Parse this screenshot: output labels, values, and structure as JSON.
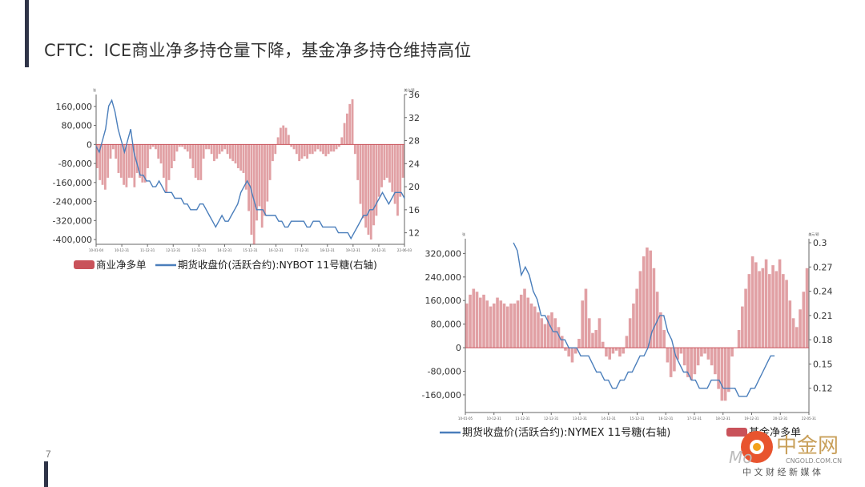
{
  "page": {
    "title": "CFTC：ICE商业净多持仓量下降，基金净多持仓维持高位",
    "page_number": "7"
  },
  "colors": {
    "bar": "#c9525a",
    "line": "#4a7ebb",
    "accent": "#2f3448"
  },
  "watermark": {
    "brand": "中金网",
    "domain": "CNGOLD.COM.CN",
    "tagline": "中 文 财 经 新 媒 体",
    "logo_text": "Mo"
  },
  "chart_data": [
    {
      "type": "bar+line",
      "left_unit": "张",
      "right_unit": "美分/磅",
      "left_ticks": [
        "160,000",
        "80,000",
        "0",
        "-80,000",
        "-160,000",
        "-240,000",
        "-320,000",
        "-400,000"
      ],
      "right_ticks": [
        "36",
        "32",
        "28",
        "24",
        "20",
        "16",
        "12"
      ],
      "ylim_left": [
        -420000,
        210000
      ],
      "ylim_right": [
        10,
        36
      ],
      "x_ticks": [
        "10-01-04",
        "10-12-31",
        "11-12-31",
        "12-12-31",
        "13-12-31",
        "14-12-31",
        "15-12-31",
        "16-12-31",
        "17-12-31",
        "18-12-31",
        "19-12-31",
        "20-12-31",
        "22-06-03"
      ],
      "legend": [
        "商业净多单",
        "期货收盘价(活跃合约):NYBOT 11号糖(右轴)"
      ],
      "bars": [
        -100000,
        -150000,
        -170000,
        -190000,
        -140000,
        -60000,
        -20000,
        -60000,
        -120000,
        -140000,
        -170000,
        -180000,
        -140000,
        -140000,
        -180000,
        -120000,
        -140000,
        -160000,
        -160000,
        -100000,
        -20000,
        -10000,
        -20000,
        -60000,
        -80000,
        -140000,
        -200000,
        -150000,
        -100000,
        -70000,
        -30000,
        -10000,
        -10000,
        -20000,
        -30000,
        -60000,
        -100000,
        -140000,
        -150000,
        -150000,
        -60000,
        -20000,
        -20000,
        -40000,
        -70000,
        -60000,
        -40000,
        -30000,
        -20000,
        -40000,
        -60000,
        -70000,
        -80000,
        -100000,
        -110000,
        -120000,
        -190000,
        -280000,
        -380000,
        -420000,
        -320000,
        -260000,
        -350000,
        -300000,
        -240000,
        -150000,
        -70000,
        -40000,
        30000,
        70000,
        80000,
        70000,
        40000,
        -10000,
        -20000,
        -40000,
        -70000,
        -60000,
        -50000,
        -60000,
        -40000,
        -40000,
        -30000,
        -20000,
        -30000,
        -40000,
        -50000,
        -40000,
        -30000,
        -30000,
        -20000,
        -10000,
        30000,
        90000,
        130000,
        170000,
        190000,
        -40000,
        -150000,
        -250000,
        -310000,
        -350000,
        -380000,
        -400000,
        -340000,
        -300000,
        -220000,
        -180000,
        -150000,
        -140000,
        -160000,
        -200000,
        -250000,
        -300000,
        -220000,
        -140000
      ],
      "price": [
        27,
        26,
        28,
        30,
        34,
        35,
        33,
        30,
        28,
        26,
        28,
        30,
        26,
        24,
        22,
        22,
        21,
        21,
        20,
        20,
        21,
        20,
        19,
        19,
        19,
        18,
        18,
        18,
        17,
        17,
        16,
        16,
        16,
        17,
        17,
        16,
        15,
        14,
        13,
        14,
        15,
        14,
        14,
        15,
        16,
        17,
        19,
        20,
        21,
        20,
        18,
        16,
        16,
        16,
        15,
        15,
        15,
        15,
        14,
        14,
        13,
        13,
        14,
        14,
        14,
        14,
        14,
        13,
        13,
        14,
        14,
        14,
        13,
        13,
        13,
        13,
        13,
        12,
        12,
        12,
        12,
        11,
        12,
        13,
        14,
        15,
        15,
        16,
        16,
        17,
        18,
        19,
        18,
        17,
        18,
        19,
        19,
        19,
        18
      ]
    },
    {
      "type": "bar+line",
      "left_unit": "张",
      "right_unit": "美元/磅",
      "left_ticks": [
        "320,000",
        "240,000",
        "160,000",
        "80,000",
        "0",
        "-80,000",
        "-160,000"
      ],
      "right_ticks": [
        "0.3",
        "0.27",
        "0.24",
        "0.21",
        "0.18",
        "0.15",
        "0.12"
      ],
      "ylim_left": [
        -220000,
        370000
      ],
      "ylim_right": [
        0.09,
        0.305
      ],
      "x_ticks": [
        "10-01-05",
        "10-12-31",
        "11-12-31",
        "12-12-31",
        "13-12-31",
        "14-12-31",
        "15-12-31",
        "16-12-31",
        "17-12-31",
        "18-12-31",
        "19-12-31",
        "20-12-31",
        "22-05-31"
      ],
      "legend": [
        "期货收盘价(活跃合约):NYMEX 11号糖(右轴)",
        "基金净多单"
      ],
      "bars": [
        150000,
        180000,
        200000,
        190000,
        170000,
        180000,
        160000,
        140000,
        150000,
        170000,
        160000,
        150000,
        140000,
        150000,
        150000,
        160000,
        180000,
        200000,
        170000,
        150000,
        140000,
        120000,
        100000,
        80000,
        110000,
        120000,
        100000,
        70000,
        40000,
        -10000,
        -30000,
        -50000,
        -20000,
        30000,
        160000,
        200000,
        100000,
        50000,
        60000,
        100000,
        20000,
        -30000,
        -40000,
        -20000,
        -10000,
        -30000,
        -20000,
        40000,
        100000,
        150000,
        200000,
        260000,
        310000,
        340000,
        330000,
        270000,
        190000,
        120000,
        60000,
        -50000,
        -100000,
        -80000,
        -40000,
        -20000,
        -60000,
        -100000,
        -110000,
        -90000,
        -60000,
        -30000,
        -20000,
        -40000,
        -60000,
        -90000,
        -140000,
        -180000,
        -180000,
        -150000,
        -30000,
        0,
        60000,
        140000,
        200000,
        250000,
        310000,
        290000,
        260000,
        270000,
        300000,
        250000,
        280000,
        260000,
        300000,
        250000,
        230000,
        160000,
        100000,
        70000,
        130000,
        190000,
        270000
      ]
    },
    {
      "type": "line-only",
      "price": [
        0.3,
        0.29,
        0.26,
        0.27,
        0.26,
        0.24,
        0.23,
        0.21,
        0.21,
        0.2,
        0.19,
        0.19,
        0.18,
        0.18,
        0.17,
        0.17,
        0.17,
        0.16,
        0.16,
        0.16,
        0.15,
        0.14,
        0.14,
        0.13,
        0.13,
        0.12,
        0.12,
        0.13,
        0.13,
        0.14,
        0.14,
        0.15,
        0.16,
        0.16,
        0.17,
        0.19,
        0.2,
        0.21,
        0.21,
        0.19,
        0.18,
        0.16,
        0.15,
        0.14,
        0.14,
        0.13,
        0.13,
        0.12,
        0.12,
        0.12,
        0.13,
        0.13,
        0.13,
        0.12,
        0.12,
        0.12,
        0.12,
        0.11,
        0.11,
        0.11,
        0.12,
        0.12,
        0.13,
        0.14,
        0.15,
        0.16,
        0.16
      ]
    }
  ]
}
